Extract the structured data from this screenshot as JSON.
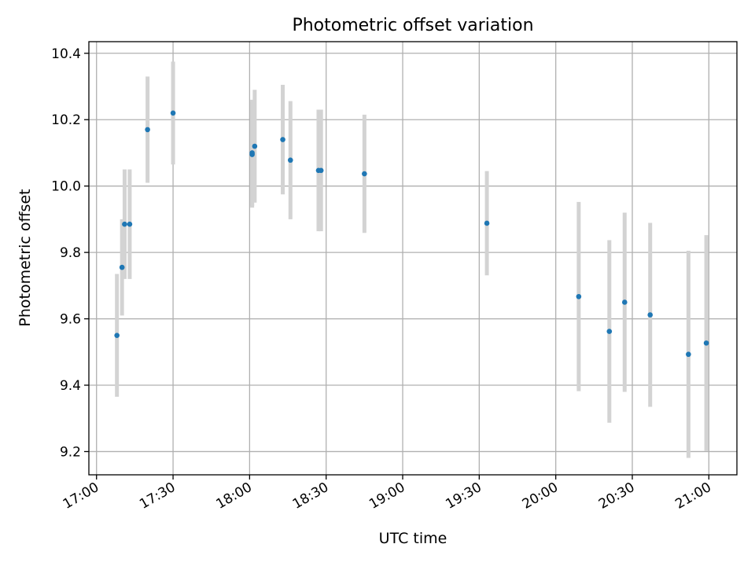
{
  "chart_data": {
    "type": "scatter",
    "title": "Photometric offset variation",
    "xlabel": "UTC time",
    "ylabel": "Photometric offset",
    "grid": true,
    "x_ticks": [
      "17:00",
      "17:30",
      "18:00",
      "18:30",
      "19:00",
      "19:30",
      "20:00",
      "20:30",
      "21:00"
    ],
    "y_ticks": [
      "9.2",
      "9.4",
      "9.6",
      "9.8",
      "10.0",
      "10.2",
      "10.4"
    ],
    "xlim": [
      "16:57",
      "21:11"
    ],
    "ylim": [
      9.13,
      10.435
    ],
    "colors": {
      "point": "#1f77b4",
      "errorbar": "#d3d3d3"
    },
    "points": [
      {
        "x": "17:08",
        "y": 9.55,
        "err": 0.185
      },
      {
        "x": "17:10",
        "y": 9.755,
        "err": 0.145
      },
      {
        "x": "17:11",
        "y": 9.885,
        "err": 0.165
      },
      {
        "x": "17:13",
        "y": 9.885,
        "err": 0.165
      },
      {
        "x": "17:20",
        "y": 10.17,
        "err": 0.16
      },
      {
        "x": "17:30",
        "y": 10.22,
        "err": 0.155
      },
      {
        "x": "18:01",
        "y": 10.095,
        "err": 0.16
      },
      {
        "x": "18:01",
        "y": 10.1,
        "err": 0.16
      },
      {
        "x": "18:02",
        "y": 10.12,
        "err": 0.17
      },
      {
        "x": "18:13",
        "y": 10.14,
        "err": 0.165
      },
      {
        "x": "18:16",
        "y": 10.078,
        "err": 0.178
      },
      {
        "x": "18:27",
        "y": 10.047,
        "err": 0.183
      },
      {
        "x": "18:28",
        "y": 10.047,
        "err": 0.183
      },
      {
        "x": "18:45",
        "y": 10.037,
        "err": 0.178
      },
      {
        "x": "19:33",
        "y": 9.888,
        "err": 0.157
      },
      {
        "x": "20:09",
        "y": 9.667,
        "err": 0.285
      },
      {
        "x": "20:21",
        "y": 9.562,
        "err": 0.275
      },
      {
        "x": "20:27",
        "y": 9.65,
        "err": 0.27
      },
      {
        "x": "20:37",
        "y": 9.612,
        "err": 0.277
      },
      {
        "x": "20:52",
        "y": 9.493,
        "err": 0.312
      },
      {
        "x": "20:59",
        "y": 9.527,
        "err": 0.325
      }
    ]
  }
}
